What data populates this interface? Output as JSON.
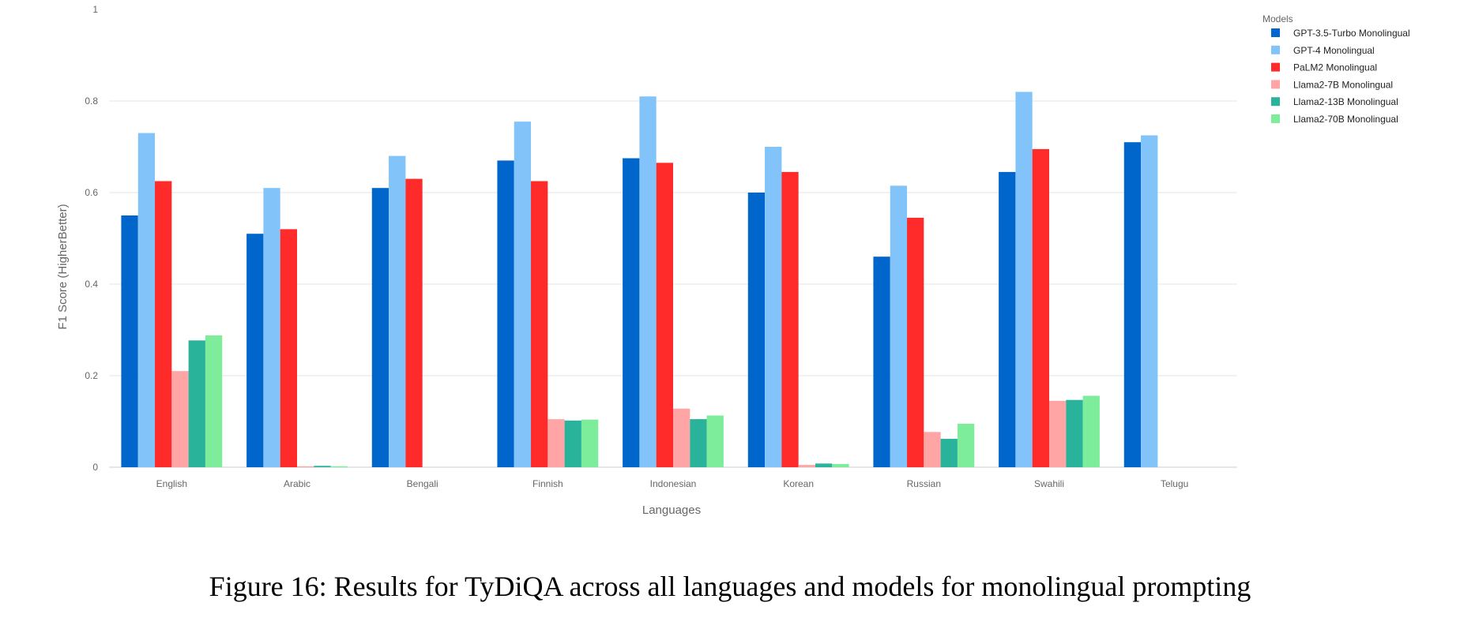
{
  "chart_data": {
    "type": "bar",
    "title": "",
    "xlabel": "Languages",
    "ylabel": "F1 Score (HigherBetter)",
    "ylim": [
      0,
      1
    ],
    "yticks": [
      0,
      0.2,
      0.4,
      0.6,
      0.8,
      1
    ],
    "ytick_labels": [
      "0",
      "0.2",
      "0.4",
      "0.6",
      "0.8",
      "1"
    ],
    "grid": true,
    "legend_title": "Models",
    "legend_position": "top-right",
    "categories": [
      "English",
      "Arabic",
      "Bengali",
      "Finnish",
      "Indonesian",
      "Korean",
      "Russian",
      "Swahili",
      "Telugu"
    ],
    "series": [
      {
        "name": "GPT-3.5-Turbo Monolingual",
        "color": "#0066cc",
        "values": [
          0.55,
          0.51,
          0.61,
          0.67,
          0.675,
          0.6,
          0.46,
          0.645,
          0.71
        ]
      },
      {
        "name": "GPT-4 Monolingual",
        "color": "#82c4fa",
        "values": [
          0.73,
          0.61,
          0.68,
          0.755,
          0.81,
          0.7,
          0.615,
          0.82,
          0.725
        ]
      },
      {
        "name": "PaLM2 Monolingual",
        "color": "#ff2a2a",
        "values": [
          0.625,
          0.52,
          0.63,
          0.625,
          0.665,
          0.645,
          0.545,
          0.695,
          0
        ]
      },
      {
        "name": "Llama2-7B Monolingual",
        "color": "#ffa5a5",
        "values": [
          0.21,
          0.002,
          0,
          0.105,
          0.128,
          0.005,
          0.077,
          0.145,
          0
        ]
      },
      {
        "name": "Llama2-13B Monolingual",
        "color": "#2ab39b",
        "values": [
          0.277,
          0.003,
          0,
          0.102,
          0.105,
          0.008,
          0.062,
          0.147,
          0
        ]
      },
      {
        "name": "Llama2-70B Monolingual",
        "color": "#7ded9c",
        "values": [
          0.288,
          0.002,
          0,
          0.104,
          0.113,
          0.007,
          0.095,
          0.156,
          0
        ]
      }
    ]
  },
  "caption": "Figure 16: Results for TyDiQA across all languages and models for monolingual prompting"
}
